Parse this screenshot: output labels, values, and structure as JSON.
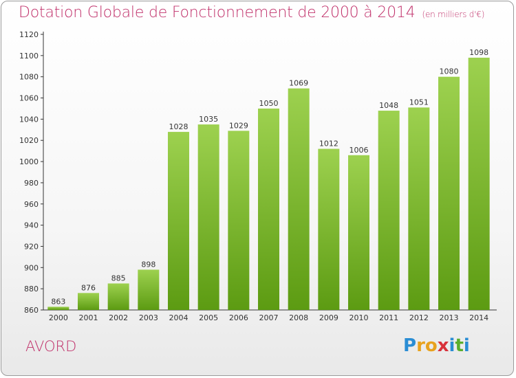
{
  "title": "Dotation Globale de Fonctionnement de 2000 à 2014",
  "subtitle": "(en milliers d'€)",
  "commune": "AVORD",
  "logo": {
    "letters": [
      "P",
      "r",
      "o",
      "x",
      "i",
      "t",
      "i"
    ],
    "colors": [
      "#2a8dd4",
      "#e8a21e",
      "#e8a21e",
      "#d8313a",
      "#2a8dd4",
      "#5aae2c",
      "#2a8dd4"
    ]
  },
  "chart_data": {
    "type": "bar",
    "title": "Dotation Globale de Fonctionnement de 2000 à 2014",
    "subtitle": "(en milliers d'€)",
    "xlabel": "",
    "ylabel": "",
    "categories": [
      "2000",
      "2001",
      "2002",
      "2003",
      "2004",
      "2005",
      "2006",
      "2007",
      "2008",
      "2009",
      "2010",
      "2011",
      "2012",
      "2013",
      "2014"
    ],
    "values": [
      863,
      876,
      885,
      898,
      1028,
      1035,
      1029,
      1050,
      1069,
      1012,
      1006,
      1048,
      1051,
      1080,
      1098
    ],
    "ylim": [
      860,
      1120
    ],
    "yticks": [
      860,
      880,
      900,
      920,
      940,
      960,
      980,
      1000,
      1020,
      1040,
      1060,
      1080,
      1100,
      1120
    ],
    "grid": false,
    "bar_color_top": "#9dd14f",
    "bar_color_bottom": "#5c9b12",
    "data_labels": true
  }
}
